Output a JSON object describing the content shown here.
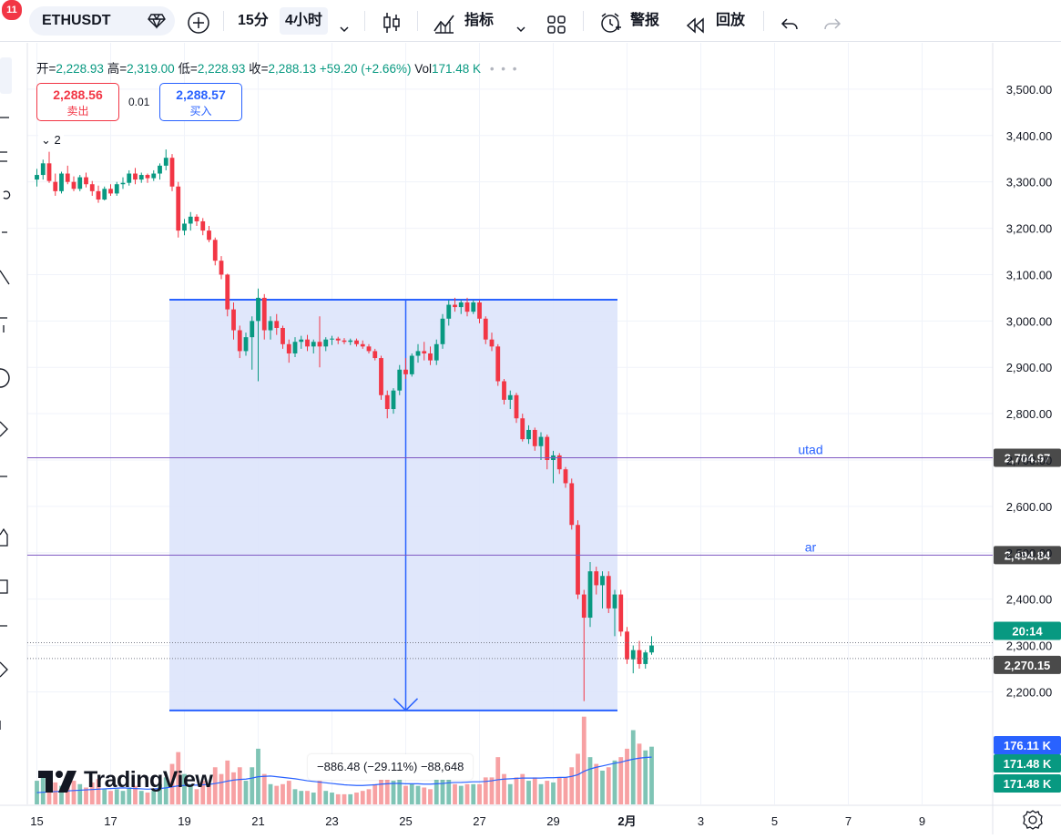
{
  "notifications": {
    "count": "11"
  },
  "toolbar": {
    "symbol": "ETHUSDT",
    "timeframe_15m": "15分",
    "timeframe_4h": "4小时",
    "indicators_label": "指标",
    "alerts_label": "警报",
    "replay_label": "回放"
  },
  "legend": {
    "open_label": "开=",
    "open_value": "2,228.93",
    "high_label": "高=",
    "high_value": "2,319.00",
    "low_label": "低=",
    "low_value": "2,228.93",
    "close_label": "收=",
    "close_value": "2,288.13",
    "change": "+59.20 (+2.66%)",
    "volume_label": "Vol",
    "volume_value": "171.48 K",
    "collapse_count": "2"
  },
  "trade": {
    "sell_price": "2,288.56",
    "sell_label": "卖出",
    "spread": "0.01",
    "buy_price": "2,288.57",
    "buy_label": "买入"
  },
  "measure": {
    "label": "−886.48 (−29.11%) −88,648"
  },
  "brand": {
    "name": "TradingView"
  },
  "colors": {
    "up": "#089981",
    "down": "#f23645",
    "up_vol": "#7fc4b5",
    "down_vol": "#f7a1a3",
    "range_fill": "#dde4fb",
    "range_stroke": "#2962ff",
    "hline": "#7e57c2",
    "hline_label": "#2962ff",
    "ma_line": "#2962ff",
    "grid": "#f0f3fa"
  },
  "chart_data": {
    "type": "candlestick",
    "symbol": "ETHUSDT",
    "interval": "4h",
    "ylim": [
      2140,
      3545
    ],
    "y_ticks": [
      "2,200.00",
      "2,300.00",
      "2,400.00",
      "2,500.00",
      "2,600.00",
      "2,700.00",
      "2,800.00",
      "2,900.00",
      "3,000.00",
      "3,100.00",
      "3,200.00",
      "3,300.00",
      "3,400.00",
      "3,500.00"
    ],
    "y_tick_values": [
      2200,
      2300,
      2400,
      2500,
      2600,
      2700,
      2800,
      2900,
      3000,
      3100,
      3200,
      3300,
      3400,
      3500
    ],
    "x_ticks": [
      "15",
      "17",
      "19",
      "21",
      "23",
      "25",
      "27",
      "29",
      "2月",
      "3",
      "5",
      "7",
      "9"
    ],
    "x_tick_bold": [
      false,
      false,
      false,
      false,
      false,
      false,
      false,
      false,
      true,
      false,
      false,
      false,
      false
    ],
    "x_tick_index": [
      0,
      12,
      24,
      36,
      48,
      60,
      72,
      84,
      96,
      108,
      120,
      132,
      144
    ],
    "horizontal_lines": [
      {
        "name": "utad",
        "value": 2704.97,
        "label": "2,704.97"
      },
      {
        "name": "ar",
        "value": 2494.84,
        "label": "2,494.84"
      }
    ],
    "measure_range": {
      "from_index": 22,
      "to_index": 94,
      "top": 3046.0,
      "bottom": 2160.0,
      "arrow_index": 60
    },
    "price_badges": [
      {
        "label": "20:14",
        "value": 2306,
        "color": "#089981"
      },
      {
        "label": "2,270.15",
        "value": 2272,
        "color": "#4a4a4a"
      }
    ],
    "volume_badges": [
      {
        "label": "176.11 K",
        "color": "#2962ff",
        "level": 176.11
      },
      {
        "label": "171.48 K",
        "color": "#089981",
        "level": 171.48
      },
      {
        "label": "171.48 K",
        "color": "#089981",
        "level": 171.48
      }
    ],
    "volume_ylim": [
      0,
      270
    ],
    "candles": [
      [
        3305,
        3328,
        3290,
        3315,
        70
      ],
      [
        3315,
        3348,
        3305,
        3340,
        95
      ],
      [
        3340,
        3365,
        3298,
        3302,
        85
      ],
      [
        3300,
        3318,
        3270,
        3280,
        65
      ],
      [
        3280,
        3322,
        3275,
        3318,
        55
      ],
      [
        3318,
        3335,
        3295,
        3300,
        60
      ],
      [
        3300,
        3312,
        3280,
        3285,
        70
      ],
      [
        3285,
        3315,
        3280,
        3310,
        60
      ],
      [
        3310,
        3320,
        3288,
        3295,
        50
      ],
      [
        3295,
        3302,
        3270,
        3280,
        65
      ],
      [
        3280,
        3292,
        3255,
        3262,
        75
      ],
      [
        3262,
        3290,
        3260,
        3285,
        45
      ],
      [
        3285,
        3295,
        3270,
        3275,
        40
      ],
      [
        3275,
        3300,
        3270,
        3295,
        45
      ],
      [
        3295,
        3310,
        3285,
        3298,
        40
      ],
      [
        3298,
        3325,
        3292,
        3318,
        50
      ],
      [
        3318,
        3330,
        3295,
        3305,
        55
      ],
      [
        3305,
        3320,
        3298,
        3315,
        40
      ],
      [
        3315,
        3318,
        3298,
        3308,
        35
      ],
      [
        3308,
        3325,
        3302,
        3318,
        40
      ],
      [
        3318,
        3340,
        3305,
        3335,
        60
      ],
      [
        3335,
        3370,
        3325,
        3352,
        80
      ],
      [
        3352,
        3360,
        3280,
        3290,
        120
      ],
      [
        3290,
        3300,
        3180,
        3195,
        155
      ],
      [
        3195,
        3220,
        3185,
        3210,
        90
      ],
      [
        3210,
        3235,
        3195,
        3225,
        60
      ],
      [
        3225,
        3230,
        3205,
        3215,
        45
      ],
      [
        3215,
        3222,
        3185,
        3195,
        70
      ],
      [
        3195,
        3205,
        3170,
        3175,
        60
      ],
      [
        3175,
        3180,
        3120,
        3130,
        110
      ],
      [
        3130,
        3140,
        3090,
        3100,
        90
      ],
      [
        3100,
        3102,
        3010,
        3025,
        130
      ],
      [
        3025,
        3040,
        2960,
        2980,
        95
      ],
      [
        2980,
        2990,
        2920,
        2935,
        110
      ],
      [
        2935,
        2975,
        2925,
        2965,
        70
      ],
      [
        2965,
        3010,
        2895,
        3000,
        110
      ],
      [
        3000,
        3070,
        2870,
        3050,
        165
      ],
      [
        3050,
        3058,
        2960,
        2980,
        90
      ],
      [
        2980,
        3010,
        2960,
        3000,
        60
      ],
      [
        3000,
        3015,
        2970,
        2985,
        55
      ],
      [
        2985,
        2990,
        2940,
        2950,
        60
      ],
      [
        2950,
        2960,
        2910,
        2930,
        70
      ],
      [
        2930,
        2965,
        2922,
        2955,
        45
      ],
      [
        2955,
        2968,
        2940,
        2960,
        40
      ],
      [
        2960,
        2970,
        2935,
        2945,
        40
      ],
      [
        2945,
        2960,
        2930,
        2955,
        35
      ],
      [
        2955,
        3010,
        2900,
        2945,
        70
      ],
      [
        2945,
        2965,
        2935,
        2960,
        40
      ],
      [
        2960,
        2968,
        2948,
        2962,
        35
      ],
      [
        2962,
        2966,
        2950,
        2958,
        30
      ],
      [
        2958,
        2963,
        2950,
        2955,
        30
      ],
      [
        2955,
        2962,
        2948,
        2958,
        30
      ],
      [
        2958,
        2962,
        2945,
        2950,
        35
      ],
      [
        2950,
        2958,
        2940,
        2945,
        40
      ],
      [
        2945,
        2950,
        2930,
        2935,
        45
      ],
      [
        2935,
        2940,
        2915,
        2920,
        60
      ],
      [
        2920,
        2925,
        2830,
        2840,
        105
      ],
      [
        2840,
        2850,
        2790,
        2810,
        80
      ],
      [
        2810,
        2855,
        2800,
        2850,
        70
      ],
      [
        2850,
        2905,
        2840,
        2895,
        75
      ],
      [
        2895,
        2920,
        2875,
        2885,
        55
      ],
      [
        2885,
        2930,
        2880,
        2925,
        60
      ],
      [
        2925,
        2950,
        2910,
        2935,
        55
      ],
      [
        2935,
        2955,
        2915,
        2930,
        50
      ],
      [
        2930,
        2945,
        2905,
        2915,
        45
      ],
      [
        2915,
        2960,
        2905,
        2950,
        80
      ],
      [
        2950,
        3015,
        2940,
        3005,
        100
      ],
      [
        3005,
        3045,
        2990,
        3035,
        90
      ],
      [
        3035,
        3050,
        3020,
        3030,
        60
      ],
      [
        3030,
        3045,
        3015,
        3040,
        55
      ],
      [
        3040,
        3050,
        3010,
        3020,
        60
      ],
      [
        3020,
        3045,
        3015,
        3040,
        60
      ],
      [
        3040,
        3045,
        2995,
        3005,
        60
      ],
      [
        3005,
        3010,
        2950,
        2960,
        80
      ],
      [
        2960,
        2975,
        2935,
        2945,
        80
      ],
      [
        2945,
        2950,
        2860,
        2870,
        140
      ],
      [
        2870,
        2875,
        2820,
        2830,
        90
      ],
      [
        2830,
        2850,
        2810,
        2840,
        60
      ],
      [
        2840,
        2845,
        2780,
        2790,
        80
      ],
      [
        2790,
        2800,
        2740,
        2745,
        90
      ],
      [
        2745,
        2775,
        2735,
        2765,
        70
      ],
      [
        2765,
        2770,
        2720,
        2730,
        80
      ],
      [
        2730,
        2760,
        2700,
        2750,
        60
      ],
      [
        2750,
        2755,
        2680,
        2700,
        70
      ],
      [
        2700,
        2720,
        2650,
        2710,
        65
      ],
      [
        2710,
        2715,
        2670,
        2680,
        80
      ],
      [
        2680,
        2685,
        2640,
        2650,
        80
      ],
      [
        2650,
        2660,
        2550,
        2560,
        110
      ],
      [
        2560,
        2570,
        2400,
        2410,
        150
      ],
      [
        2410,
        2420,
        2180,
        2360,
        260
      ],
      [
        2360,
        2480,
        2340,
        2460,
        140
      ],
      [
        2460,
        2470,
        2410,
        2430,
        120
      ],
      [
        2430,
        2460,
        2380,
        2450,
        100
      ],
      [
        2450,
        2460,
        2370,
        2380,
        110
      ],
      [
        2380,
        2420,
        2320,
        2410,
        130
      ],
      [
        2410,
        2420,
        2320,
        2330,
        140
      ],
      [
        2330,
        2340,
        2260,
        2270,
        165
      ],
      [
        2270,
        2300,
        2240,
        2290,
        220
      ],
      [
        2290,
        2310,
        2250,
        2260,
        180
      ],
      [
        2260,
        2290,
        2250,
        2285,
        160
      ],
      [
        2285,
        2320,
        2280,
        2300,
        171
      ]
    ],
    "volume_ma": [
      35,
      36,
      37,
      38,
      39,
      40,
      41,
      42,
      43,
      44,
      45,
      46,
      47,
      48,
      49,
      48,
      47,
      46,
      45,
      46,
      47,
      49,
      52,
      55,
      56,
      57,
      57,
      58,
      59,
      62,
      65,
      69,
      72,
      74,
      75,
      78,
      82,
      83,
      84,
      82,
      80,
      78,
      76,
      73,
      70,
      68,
      66,
      64,
      62,
      60,
      58,
      57,
      56,
      56,
      57,
      58,
      60,
      61,
      62,
      62,
      61,
      61,
      61,
      60,
      60,
      61,
      62,
      64,
      65,
      65,
      66,
      67,
      67,
      68,
      70,
      73,
      75,
      76,
      77,
      78,
      78,
      78,
      78,
      79,
      79,
      80,
      80,
      83,
      88,
      98,
      105,
      110,
      114,
      118,
      122,
      125,
      130,
      134,
      137,
      139,
      140
    ],
    "x_label": "",
    "y_label": ""
  }
}
